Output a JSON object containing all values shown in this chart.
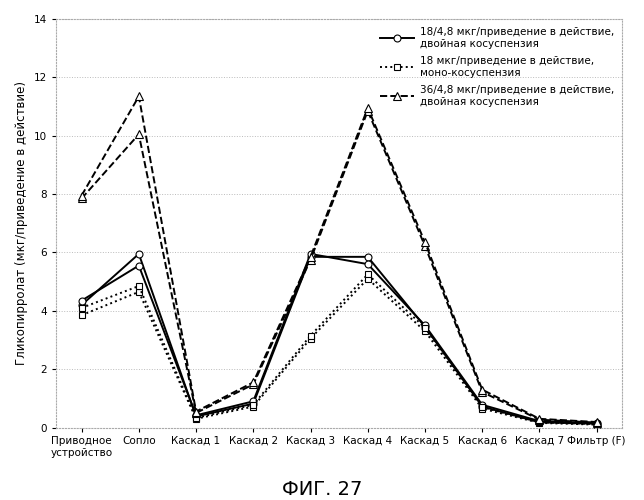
{
  "x_labels": [
    "Приводное\nустройство",
    "Сопло",
    "Каскад 1",
    "Каскад 2",
    "Каскад 3",
    "Каскад 4",
    "Каскад 5",
    "Каскад 6",
    "Каскад 7",
    "Фильтр (F)"
  ],
  "series": [
    {
      "label": "18/4,8 мкг/приведение в действие,\nдвойная косуспензия",
      "values": [
        4.2,
        5.95,
        0.38,
        0.82,
        5.85,
        5.85,
        3.45,
        0.72,
        0.18,
        0.13
      ],
      "linestyle": "-",
      "marker": "o",
      "marker_face": "white",
      "color": "#000000",
      "linewidth": 1.4,
      "markersize": 5
    },
    {
      "label": "18/4,8 мкг/приведение в действие,\nдвойная косуспензия (2)",
      "values": [
        4.35,
        5.55,
        0.42,
        0.9,
        5.95,
        5.6,
        3.5,
        0.78,
        0.22,
        0.15
      ],
      "linestyle": "-",
      "marker": "o",
      "marker_face": "white",
      "color": "#000000",
      "linewidth": 1.4,
      "markersize": 5,
      "no_legend": true
    },
    {
      "label": "18 мкг/приведение в действие,\nмоно-косуспензия",
      "values": [
        3.85,
        4.65,
        0.3,
        0.72,
        3.05,
        5.1,
        3.3,
        0.65,
        0.16,
        0.1
      ],
      "linestyle": ":",
      "marker": "s",
      "marker_face": "white",
      "color": "#000000",
      "linewidth": 1.4,
      "markersize": 5
    },
    {
      "label": "18 мкг/приведение в действие,\nмоно-косуспензия (2)",
      "values": [
        4.1,
        4.85,
        0.33,
        0.78,
        3.15,
        5.25,
        3.42,
        0.7,
        0.18,
        0.12
      ],
      "linestyle": ":",
      "marker": "s",
      "marker_face": "white",
      "color": "#000000",
      "linewidth": 1.4,
      "markersize": 5,
      "no_legend": true
    },
    {
      "label": "36/4,8 мкг/приведение в действие,\nдвойная косуспензия",
      "values": [
        7.85,
        10.05,
        0.5,
        1.48,
        5.75,
        10.85,
        6.22,
        1.22,
        0.27,
        0.17
      ],
      "linestyle": "--",
      "marker": "^",
      "marker_face": "white",
      "color": "#000000",
      "linewidth": 1.4,
      "markersize": 6
    },
    {
      "label": "36/4,8 мкг/приведение в действие,\nдвойная косуспензия (2)",
      "values": [
        7.95,
        11.35,
        0.55,
        1.55,
        5.85,
        10.95,
        6.35,
        1.3,
        0.3,
        0.19
      ],
      "linestyle": "--",
      "marker": "^",
      "marker_face": "white",
      "color": "#000000",
      "linewidth": 1.4,
      "markersize": 6,
      "no_legend": true
    }
  ],
  "ylabel": "Гликопирролат (мкг/приведение в действие)",
  "title_bottom": "ФИГ. 27",
  "ylim": [
    0,
    14
  ],
  "yticks": [
    0,
    2,
    4,
    6,
    8,
    10,
    12,
    14
  ],
  "border_color": "#aaaaaa",
  "background_color": "#ffffff",
  "legend_fontsize": 7.5,
  "ylabel_fontsize": 8.5,
  "tick_fontsize": 7.5,
  "title_fontsize": 14
}
